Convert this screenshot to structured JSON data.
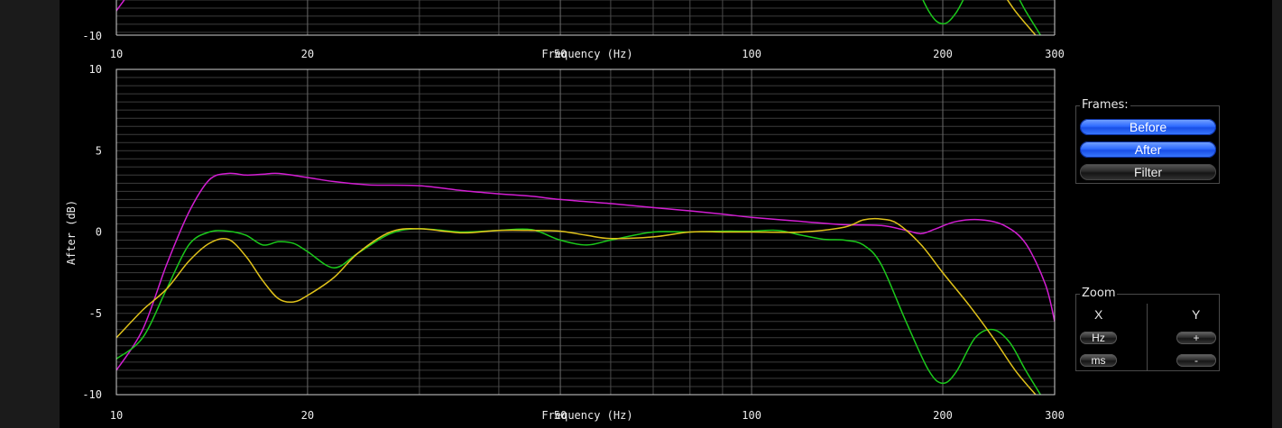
{
  "top_chart": {
    "type": "line",
    "x_ticks": [
      10,
      20,
      50,
      100,
      200,
      300
    ],
    "x_tick_labels": [
      "10",
      "20",
      "50",
      "100",
      "200",
      "300"
    ],
    "xlabel": "Frequency (Hz)",
    "y_tick_labels": [
      "-10"
    ]
  },
  "chart_data": {
    "type": "line",
    "xlabel": "Frequency (Hz)",
    "ylabel": "After (dB)",
    "x_scale": "log",
    "xlim": [
      10,
      300
    ],
    "ylim": [
      -10,
      10
    ],
    "x_ticks": [
      10,
      20,
      50,
      100,
      200,
      300
    ],
    "x_tick_labels": [
      "10",
      "20",
      "50",
      "100",
      "200",
      "300"
    ],
    "y_ticks": [
      -10,
      -5,
      0,
      5,
      10
    ],
    "y_tick_labels": [
      "-10",
      "-5",
      "0",
      "5",
      "10"
    ],
    "grid": true,
    "series": [
      {
        "color": "#d21ed2",
        "points": [
          [
            10,
            -8.5
          ],
          [
            11,
            -6
          ],
          [
            12,
            -2
          ],
          [
            13,
            1.2
          ],
          [
            14,
            3.2
          ],
          [
            15,
            3.6
          ],
          [
            16,
            3.5
          ],
          [
            17,
            3.55
          ],
          [
            18,
            3.6
          ],
          [
            20,
            3.35
          ],
          [
            22,
            3.1
          ],
          [
            25,
            2.9
          ],
          [
            30,
            2.85
          ],
          [
            35,
            2.55
          ],
          [
            40,
            2.35
          ],
          [
            45,
            2.2
          ],
          [
            50,
            2.0
          ],
          [
            60,
            1.75
          ],
          [
            70,
            1.5
          ],
          [
            80,
            1.3
          ],
          [
            90,
            1.1
          ],
          [
            100,
            0.9
          ],
          [
            120,
            0.65
          ],
          [
            140,
            0.45
          ],
          [
            160,
            0.4
          ],
          [
            175,
            0.1
          ],
          [
            185,
            -0.1
          ],
          [
            195,
            0.2
          ],
          [
            210,
            0.65
          ],
          [
            230,
            0.75
          ],
          [
            250,
            0.4
          ],
          [
            270,
            -0.7
          ],
          [
            290,
            -3.2
          ],
          [
            300,
            -5.5
          ]
        ]
      },
      {
        "color": "#1bc81b",
        "points": [
          [
            10,
            -7.8
          ],
          [
            11,
            -6.5
          ],
          [
            12,
            -3.5
          ],
          [
            13,
            -0.8
          ],
          [
            14,
            0
          ],
          [
            15,
            0.05
          ],
          [
            16,
            -0.2
          ],
          [
            17,
            -0.8
          ],
          [
            18,
            -0.6
          ],
          [
            19,
            -0.7
          ],
          [
            20,
            -1.2
          ],
          [
            22,
            -2.2
          ],
          [
            24,
            -1.3
          ],
          [
            27,
            -0.1
          ],
          [
            30,
            0.2
          ],
          [
            35,
            0
          ],
          [
            40,
            0.1
          ],
          [
            45,
            0.15
          ],
          [
            50,
            -0.5
          ],
          [
            55,
            -0.8
          ],
          [
            60,
            -0.5
          ],
          [
            70,
            0
          ],
          [
            80,
            0
          ],
          [
            90,
            0.05
          ],
          [
            100,
            0.05
          ],
          [
            110,
            0.1
          ],
          [
            120,
            -0.2
          ],
          [
            130,
            -0.45
          ],
          [
            140,
            -0.5
          ],
          [
            150,
            -0.8
          ],
          [
            160,
            -2
          ],
          [
            175,
            -5.5
          ],
          [
            190,
            -8.5
          ],
          [
            200,
            -9.3
          ],
          [
            210,
            -8.6
          ],
          [
            225,
            -6.5
          ],
          [
            240,
            -6
          ],
          [
            255,
            -6.8
          ],
          [
            270,
            -8.5
          ],
          [
            285,
            -10
          ]
        ]
      },
      {
        "color": "#e0c21a",
        "points": [
          [
            10,
            -6.5
          ],
          [
            11,
            -4.8
          ],
          [
            12,
            -3.5
          ],
          [
            13,
            -1.8
          ],
          [
            14,
            -0.7
          ],
          [
            15,
            -0.45
          ],
          [
            16,
            -1.5
          ],
          [
            17,
            -3
          ],
          [
            18,
            -4.1
          ],
          [
            19,
            -4.3
          ],
          [
            20,
            -3.9
          ],
          [
            22,
            -2.8
          ],
          [
            24,
            -1.3
          ],
          [
            27,
            0
          ],
          [
            30,
            0.2
          ],
          [
            35,
            -0.05
          ],
          [
            40,
            0.1
          ],
          [
            45,
            0.1
          ],
          [
            50,
            0.05
          ],
          [
            55,
            -0.2
          ],
          [
            60,
            -0.4
          ],
          [
            70,
            -0.3
          ],
          [
            80,
            0
          ],
          [
            90,
            0
          ],
          [
            100,
            0
          ],
          [
            120,
            0
          ],
          [
            140,
            0.3
          ],
          [
            150,
            0.75
          ],
          [
            160,
            0.8
          ],
          [
            170,
            0.5
          ],
          [
            185,
            -0.8
          ],
          [
            200,
            -2.5
          ],
          [
            220,
            -4.5
          ],
          [
            240,
            -6.5
          ],
          [
            260,
            -8.5
          ],
          [
            280,
            -10
          ]
        ]
      }
    ]
  },
  "panels": {
    "frames": {
      "title": "Frames:",
      "buttons": [
        {
          "label": "Before",
          "active": true
        },
        {
          "label": "After",
          "active": true
        },
        {
          "label": "Filter",
          "active": false
        }
      ]
    },
    "zoom": {
      "title": "Zoom",
      "x_label": "X",
      "y_label": "Y",
      "hz_label": "Hz",
      "ms_label": "ms",
      "plus_label": "+",
      "minus_label": "-"
    }
  },
  "colors": {
    "background": "#000000",
    "grid": "#4a4a4a",
    "active_button": "#2f6bff"
  }
}
